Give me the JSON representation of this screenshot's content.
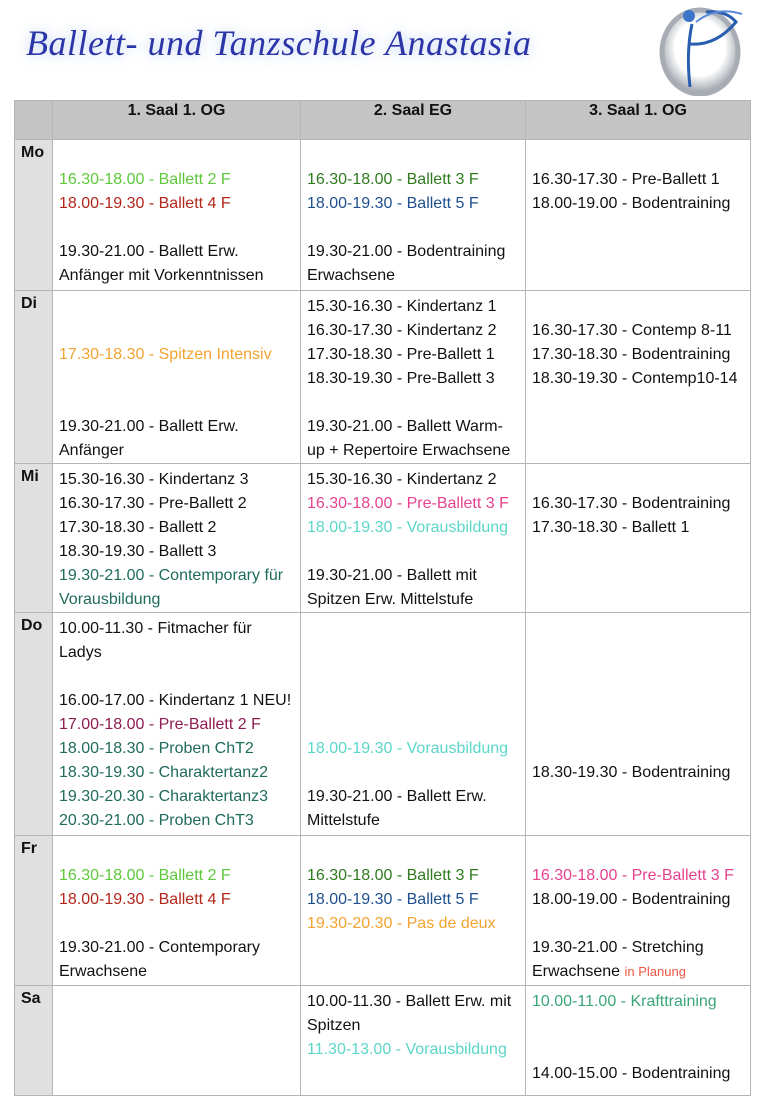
{
  "header": {
    "title": "Ballett-  und Tanzschule Anastasia",
    "logo_icon": "dancer-logo"
  },
  "colors": {
    "black": "#111111",
    "lightgreen": "#5cc83a",
    "red": "#b3261b",
    "darkgreen": "#2f7a1f",
    "blue": "#1f4f8e",
    "orange": "#f2a330",
    "pink": "#e6428f",
    "cyan": "#5bd6c8",
    "teal": "#1f6b5c",
    "purple": "#8e1c52",
    "green2": "#3aa679",
    "note": "#ee5540"
  },
  "table": {
    "columns": [
      "",
      "1. Saal 1. OG",
      "2. Saal EG",
      "3. Saal 1. OG"
    ],
    "rows": [
      {
        "day": "Mo",
        "cells": [
          [
            {
              "t": ""
            },
            {
              "t": "16.30-18.00 - Ballett 2 F",
              "c": "lightgreen"
            },
            {
              "t": "18.00-19.30 - Ballett 4 F",
              "c": "red"
            },
            {
              "t": ""
            },
            {
              "t": "19.30-21.00 - Ballett Erw."
            },
            {
              "t": "Anfänger mit Vorkenntnissen"
            }
          ],
          [
            {
              "t": ""
            },
            {
              "t": "16.30-18.00 - Ballett 3 F",
              "c": "darkgreen"
            },
            {
              "t": "18.00-19.30 - Ballett 5 F",
              "c": "blue"
            },
            {
              "t": ""
            },
            {
              "t": "19.30-21.00 - Bodentraining"
            },
            {
              "t": "Erwachsene"
            }
          ],
          [
            {
              "t": ""
            },
            {
              "t": "16.30-17.30 - Pre-Ballett 1"
            },
            {
              "t": "18.00-19.00 - Bodentraining"
            }
          ]
        ]
      },
      {
        "day": "Di",
        "cells": [
          [
            {
              "t": ""
            },
            {
              "t": ""
            },
            {
              "t": "17.30-18.30 - Spitzen Intensiv",
              "c": "orange"
            },
            {
              "t": ""
            },
            {
              "t": ""
            },
            {
              "t": "19.30-21.00 - Ballett Erw."
            },
            {
              "t": "Anfänger"
            }
          ],
          [
            {
              "t": "15.30-16.30 - Kindertanz 1"
            },
            {
              "t": "16.30-17.30 - Kindertanz 2"
            },
            {
              "t": "17.30-18.30 - Pre-Ballett 1"
            },
            {
              "t": "18.30-19.30 - Pre-Ballett 3"
            },
            {
              "t": ""
            },
            {
              "t": "19.30-21.00 - Ballett Warm-"
            },
            {
              "t": "up + Repertoire Erwachsene"
            }
          ],
          [
            {
              "t": ""
            },
            {
              "t": "16.30-17.30 - Contemp 8-11"
            },
            {
              "t": "17.30-18.30 - Bodentraining"
            },
            {
              "t": "18.30-19.30 - Contemp10-14"
            }
          ]
        ]
      },
      {
        "day": "Mi",
        "cells": [
          [
            {
              "t": "15.30-16.30 - Kindertanz 3"
            },
            {
              "t": "16.30-17.30 - Pre-Ballett 2"
            },
            {
              "t": "17.30-18.30 - Ballett 2"
            },
            {
              "t": "18.30-19.30 - Ballett 3"
            },
            {
              "t": "19.30-21.00 - Contemporary für",
              "c": "teal"
            },
            {
              "t": "Vorausbildung",
              "c": "teal"
            }
          ],
          [
            {
              "t": "15.30-16.30 - Kindertanz 2"
            },
            {
              "t": "16.30-18.00 - Pre-Ballett 3 F",
              "c": "pink"
            },
            {
              "t": "18.00-19.30 - Vorausbildung",
              "c": "cyan"
            },
            {
              "t": ""
            },
            {
              "t": "19.30-21.00 - Ballett mit"
            },
            {
              "t": "Spitzen Erw. Mittelstufe"
            }
          ],
          [
            {
              "t": ""
            },
            {
              "t": "16.30-17.30 - Bodentraining"
            },
            {
              "t": "17.30-18.30 - Ballett 1"
            }
          ]
        ]
      },
      {
        "day": "Do",
        "cells": [
          [
            {
              "t": "10.00-11.30 - Fitmacher für"
            },
            {
              "t": "Ladys"
            },
            {
              "t": ""
            },
            {
              "t": "16.00-17.00 - Kindertanz 1 NEU!"
            },
            {
              "t": "17.00-18.00 - Pre-Ballett 2 F",
              "c": "purple"
            },
            {
              "t": "18.00-18.30 - Proben ChT2",
              "c": "teal"
            },
            {
              "t": "18.30-19.30 - Charaktertanz2",
              "c": "teal"
            },
            {
              "t": "19.30-20.30 - Charaktertanz3",
              "c": "teal"
            },
            {
              "t": "20.30-21.00 - Proben ChT3",
              "c": "teal"
            }
          ],
          [
            {
              "t": ""
            },
            {
              "t": ""
            },
            {
              "t": ""
            },
            {
              "t": ""
            },
            {
              "t": ""
            },
            {
              "t": "18.00-19.30 - Vorausbildung",
              "c": "cyan"
            },
            {
              "t": ""
            },
            {
              "t": "19.30-21.00 - Ballett Erw."
            },
            {
              "t": "Mittelstufe"
            }
          ],
          [
            {
              "t": ""
            },
            {
              "t": ""
            },
            {
              "t": ""
            },
            {
              "t": ""
            },
            {
              "t": ""
            },
            {
              "t": ""
            },
            {
              "t": "18.30-19.30 - Bodentraining"
            }
          ]
        ]
      },
      {
        "day": "Fr",
        "cells": [
          [
            {
              "t": ""
            },
            {
              "t": "16.30-18.00 - Ballett 2 F",
              "c": "lightgreen"
            },
            {
              "t": "18.00-19.30 - Ballett 4 F",
              "c": "red"
            },
            {
              "t": ""
            },
            {
              "t": "19.30-21.00 - Contemporary"
            },
            {
              "t": "Erwachsene"
            }
          ],
          [
            {
              "t": ""
            },
            {
              "t": "16.30-18.00 - Ballett 3 F",
              "c": "darkgreen"
            },
            {
              "t": "18.00-19.30 - Ballett 5 F",
              "c": "blue"
            },
            {
              "t": "19.30-20.30 - Pas de deux",
              "c": "orange"
            }
          ],
          [
            {
              "t": ""
            },
            {
              "t": "16.30-18.00 - Pre-Ballett 3 F",
              "c": "pink"
            },
            {
              "t": "18.00-19.00 - Bodentraining"
            },
            {
              "t": ""
            },
            {
              "t": "19.30-21.00 - Stretching"
            },
            {
              "t": "Erwachsene",
              "note": "in Planung"
            }
          ]
        ]
      },
      {
        "day": "Sa",
        "cells": [
          [],
          [
            {
              "t": "10.00-11.30 - Ballett Erw. mit"
            },
            {
              "t": "Spitzen"
            },
            {
              "t": "11.30-13.00 - Vorausbildung",
              "c": "cyan"
            }
          ],
          [
            {
              "t": "10.00-11.00 - Krafttraining",
              "c": "green2"
            },
            {
              "t": ""
            },
            {
              "t": ""
            },
            {
              "t": "14.00-15.00 - Bodentraining"
            }
          ]
        ]
      }
    ]
  }
}
